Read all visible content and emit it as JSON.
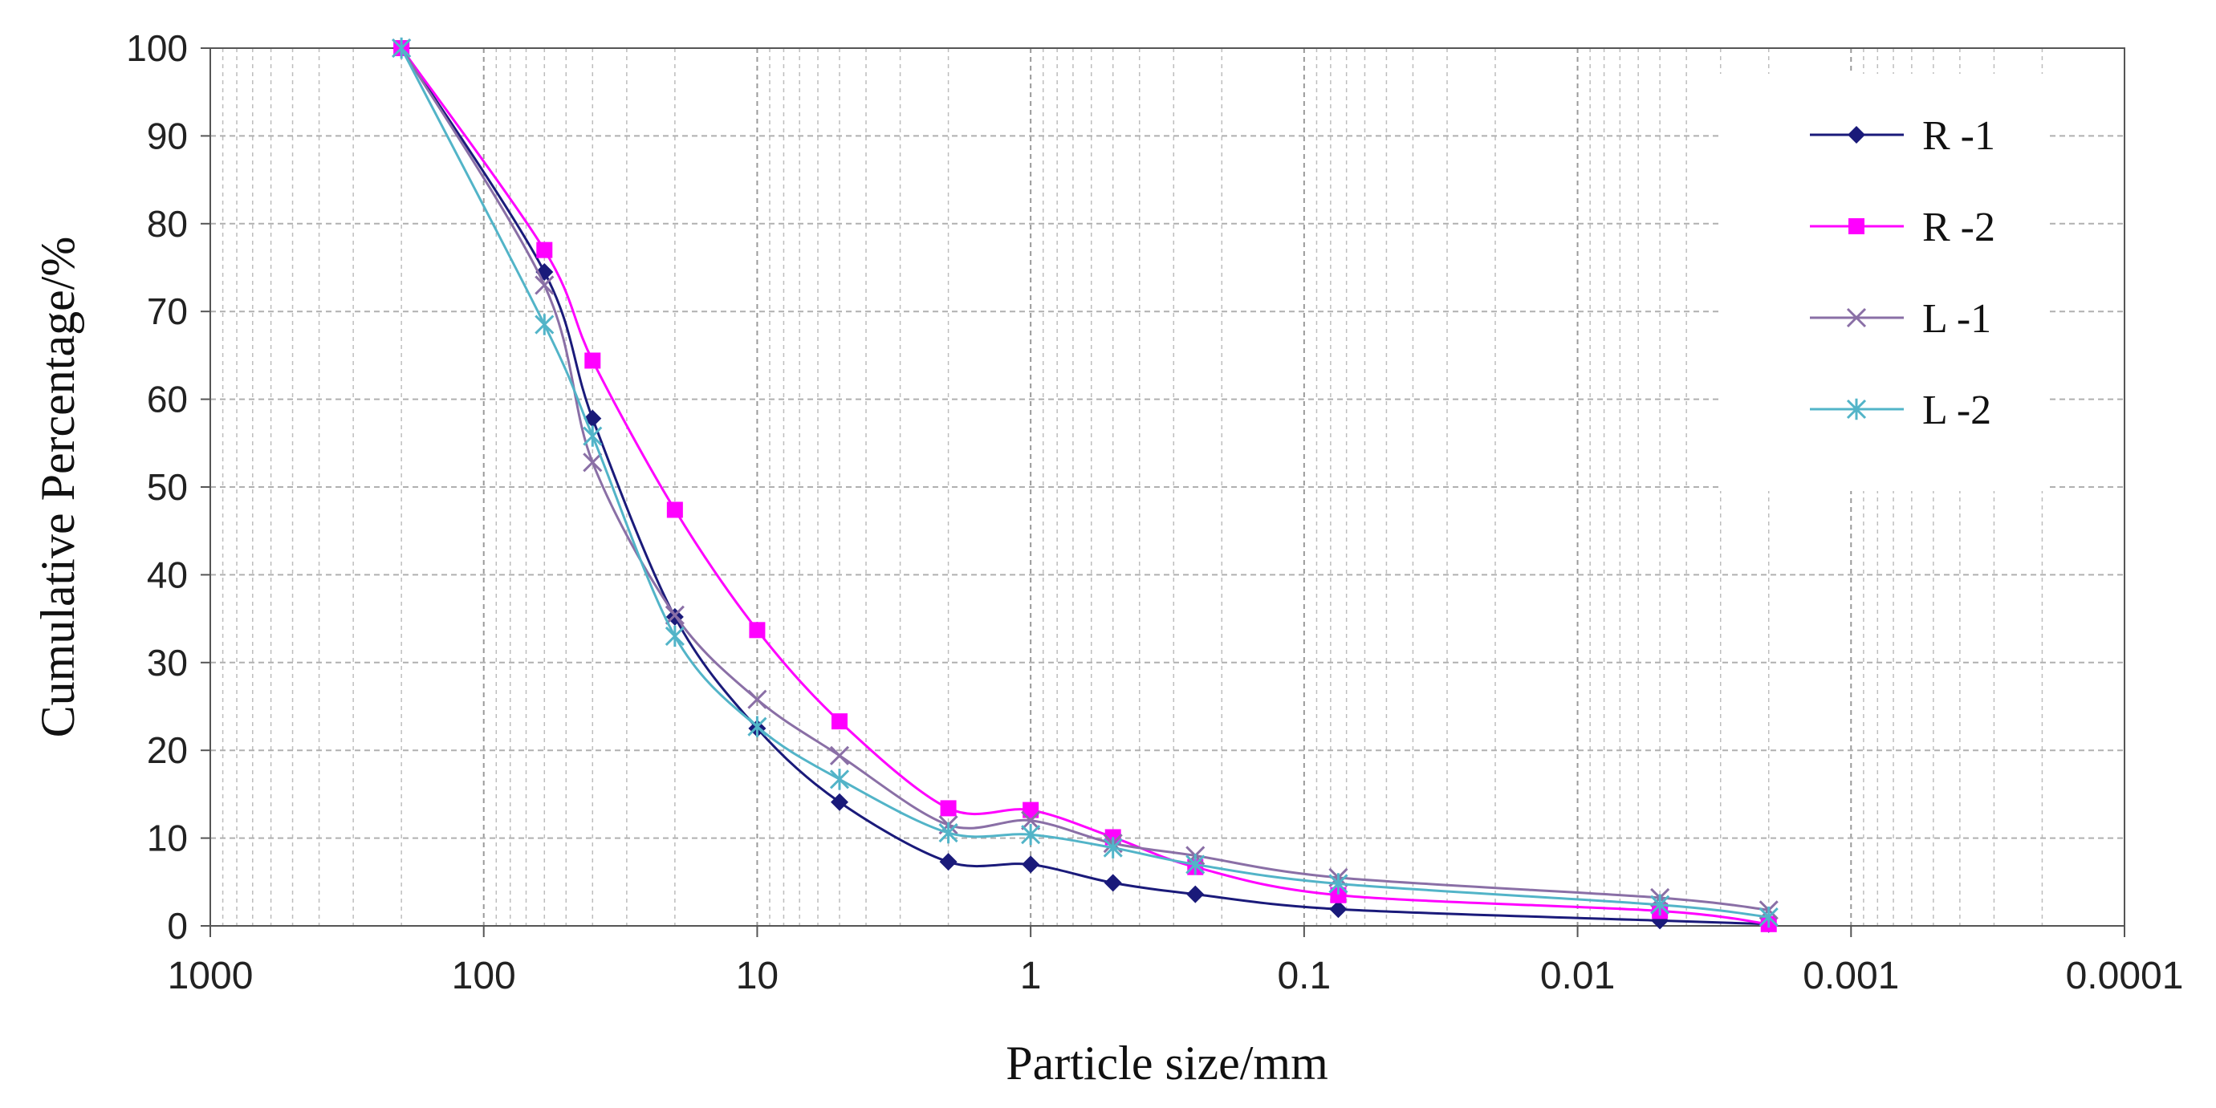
{
  "chart_data": {
    "type": "line",
    "title": "",
    "xlabel": "Particle size/mm",
    "ylabel": "Cumulative Percentage/%",
    "x_scale": "log",
    "x_reversed": true,
    "xlim": [
      1000,
      0.0001
    ],
    "ylim": [
      0,
      100
    ],
    "x_ticks": [
      1000,
      100,
      10,
      1,
      0.1,
      0.01,
      0.001,
      0.0001
    ],
    "x_tick_labels": [
      "1000",
      "100",
      "10",
      "1",
      "0.1",
      "0.01",
      "0.001",
      "0.0001"
    ],
    "y_ticks": [
      0,
      10,
      20,
      30,
      40,
      50,
      60,
      70,
      80,
      90,
      100
    ],
    "y_tick_labels": [
      "0",
      "10",
      "20",
      "30",
      "40",
      "50",
      "60",
      "70",
      "80",
      "90",
      "100"
    ],
    "grid": true,
    "legend_position": "top-right",
    "x": [
      200,
      60,
      40,
      20,
      10,
      5,
      2,
      1,
      0.5,
      0.25,
      0.075,
      0.005,
      0.002
    ],
    "series": [
      {
        "name": "R -1",
        "color": "#1a1a7a",
        "marker": "diamond",
        "values": [
          100,
          74.5,
          57.8,
          35.2,
          22.5,
          14.1,
          7.3,
          7.0,
          4.9,
          3.6,
          1.9,
          0.6,
          0.2
        ]
      },
      {
        "name": "R -2",
        "color": "#ff00ff",
        "marker": "square",
        "values": [
          100,
          77.0,
          64.4,
          47.4,
          33.7,
          23.3,
          13.4,
          13.2,
          10.1,
          6.7,
          3.5,
          1.7,
          0.2
        ]
      },
      {
        "name": "L -1",
        "color": "#8a6fa6",
        "marker": "x",
        "values": [
          100,
          73.0,
          52.8,
          35.4,
          25.8,
          19.4,
          11.5,
          12.0,
          9.4,
          8.0,
          5.5,
          3.2,
          1.8
        ]
      },
      {
        "name": "L -2",
        "color": "#52b4c8",
        "marker": "star",
        "values": [
          100,
          68.5,
          55.8,
          33.0,
          22.7,
          16.7,
          10.6,
          10.4,
          8.9,
          7.0,
          4.8,
          2.4,
          1.0
        ]
      }
    ]
  }
}
